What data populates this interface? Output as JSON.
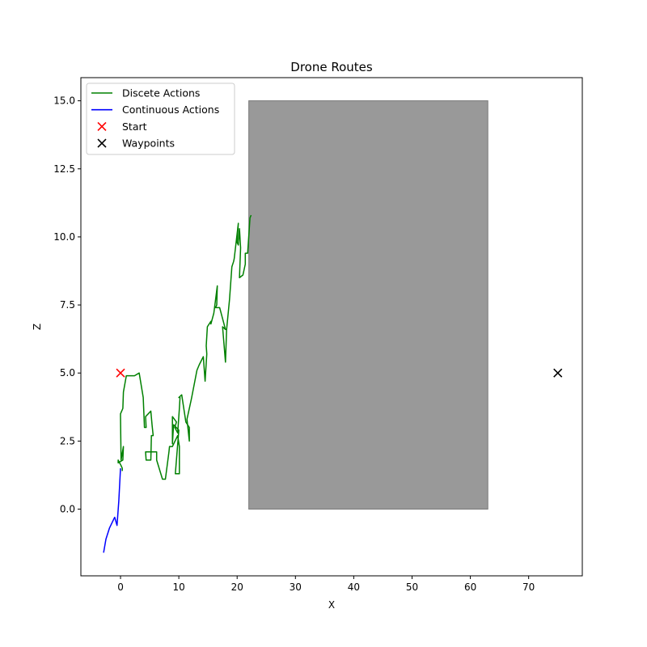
{
  "chart_data": {
    "type": "line",
    "title": "Drone Routes",
    "xlabel": "X",
    "ylabel": "Z",
    "xlim": [
      -6.8,
      79.2
    ],
    "ylim": [
      -2.45,
      15.85
    ],
    "x_ticks": [
      0,
      10,
      20,
      30,
      40,
      50,
      60,
      70
    ],
    "y_ticks": [
      0.0,
      2.5,
      5.0,
      7.5,
      10.0,
      12.5,
      15.0
    ],
    "x_tick_labels": [
      "0",
      "10",
      "20",
      "30",
      "40",
      "50",
      "60",
      "70"
    ],
    "y_tick_labels": [
      "0.0",
      "2.5",
      "5.0",
      "7.5",
      "10.0",
      "12.5",
      "15.0"
    ],
    "grid": false,
    "legend_position": "upper left",
    "obstacle": {
      "x": [
        22,
        63
      ],
      "z": [
        0,
        15
      ],
      "color": "#999999"
    },
    "series": [
      {
        "name": "Discete Actions",
        "kind": "line",
        "color": "#008000",
        "x": [
          0.3,
          0.3,
          0.1,
          -0.4,
          -0.4,
          0.4,
          0.5,
          0.1,
          0.0,
          0.0,
          0.4,
          0.5,
          1.0,
          1.5,
          2.4,
          3.2,
          3.9,
          4.1,
          4.4,
          4.3,
          5.2,
          5.4,
          5.6,
          5.3,
          5.2,
          4.4,
          4.3,
          5.2,
          6.2,
          6.2,
          7.2,
          7.7,
          8.3,
          8.4,
          8.9,
          9.8,
          10.1,
          10.1,
          9.4,
          10.0,
          9.1,
          8.9,
          8.9,
          9.6,
          9.3,
          9.8,
          10.1,
          10.2,
          10.0,
          10.5,
          11.2,
          11.8,
          11.8,
          11.4,
          12.1,
          12.2,
          13.1,
          13.5,
          14.2,
          14.5,
          14.8,
          14.7,
          14.9,
          15.5,
          15.5,
          16.0,
          16.6,
          16.5,
          16.3,
          16.7,
          17.0,
          18.0,
          17.5,
          18.0,
          18.0,
          18.2,
          18.7,
          19.1,
          19.4,
          19.5,
          20.2,
          20.0,
          20.2,
          20.4,
          20.6,
          20.4,
          21.0,
          21.4,
          21.4,
          21.8,
          22.2,
          22.4
        ],
        "y": [
          1.4,
          1.5,
          1.6,
          1.8,
          1.7,
          1.8,
          2.3,
          1.8,
          3.4,
          3.5,
          3.7,
          4.3,
          4.9,
          4.9,
          4.9,
          5.0,
          4.1,
          3.0,
          3.0,
          3.4,
          3.6,
          3.1,
          2.7,
          2.7,
          1.8,
          1.8,
          2.1,
          2.1,
          2.1,
          1.8,
          1.1,
          1.1,
          2.1,
          2.3,
          2.3,
          2.7,
          2.3,
          1.3,
          1.3,
          2.9,
          3.1,
          2.4,
          3.4,
          3.2,
          3.0,
          2.8,
          3.7,
          4.1,
          4.1,
          4.2,
          3.2,
          3.0,
          2.5,
          3.3,
          4.0,
          4.1,
          5.1,
          5.3,
          5.6,
          4.7,
          5.7,
          6.0,
          6.7,
          6.9,
          6.8,
          7.2,
          8.2,
          7.5,
          7.4,
          7.4,
          7.4,
          6.6,
          6.7,
          5.4,
          5.4,
          6.6,
          7.7,
          8.9,
          9.1,
          9.2,
          10.5,
          9.8,
          9.7,
          10.3,
          9.6,
          8.5,
          8.6,
          9.0,
          9.4,
          9.4,
          10.7,
          10.8
        ]
      },
      {
        "name": "Continuous Actions",
        "kind": "line",
        "color": "#0000ff",
        "x": [
          -2.9,
          -2.5,
          -1.9,
          -1.0,
          -0.6,
          -0.3,
          0.0
        ],
        "y": [
          -1.6,
          -1.1,
          -0.7,
          -0.3,
          -0.6,
          0.3,
          1.5
        ]
      },
      {
        "name": "Start",
        "kind": "marker",
        "marker": "x",
        "color": "#ff0000",
        "x": [
          0
        ],
        "y": [
          5
        ]
      },
      {
        "name": "Waypoints",
        "kind": "marker",
        "marker": "x",
        "color": "#000000",
        "x": [
          75
        ],
        "y": [
          5
        ]
      }
    ]
  }
}
